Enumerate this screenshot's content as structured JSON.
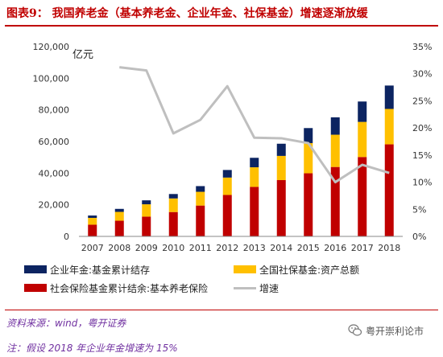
{
  "header": {
    "title": "图表9：  我国养老金（基本养老金、企业年金、社保基金）增速逐渐放缓"
  },
  "chart_data": {
    "type": "bar",
    "stacked": true,
    "unit_label": "亿元",
    "categories": [
      "2007",
      "2008",
      "2009",
      "2010",
      "2011",
      "2012",
      "2013",
      "2014",
      "2015",
      "2016",
      "2017",
      "2018"
    ],
    "y_left": {
      "ylim": [
        0,
        120000
      ],
      "ticks": [
        "0",
        "20,000",
        "40,000",
        "60,000",
        "80,000",
        "100,000",
        "120,000"
      ],
      "tick_values": [
        0,
        20000,
        40000,
        60000,
        80000,
        100000,
        120000
      ]
    },
    "y_right": {
      "ylim": [
        0,
        0.35
      ],
      "ticks": [
        "0%",
        "5%",
        "10%",
        "15%",
        "20%",
        "25%",
        "30%",
        "35%"
      ],
      "tick_values": [
        0,
        0.05,
        0.1,
        0.15,
        0.2,
        0.25,
        0.3,
        0.35
      ]
    },
    "series": [
      {
        "name": "社会保险基金累计结余:基本养老保险",
        "type": "bar",
        "color": "#c00000",
        "values": [
          7400,
          9900,
          12500,
          15400,
          19500,
          26200,
          31300,
          35600,
          39900,
          43900,
          50200,
          58200
        ]
      },
      {
        "name": "全国社保基金:资产总额",
        "type": "bar",
        "color": "#ffc000",
        "values": [
          4300,
          5600,
          7800,
          8600,
          8700,
          11000,
          12400,
          15300,
          19100,
          20400,
          22200,
          22400
        ]
      },
      {
        "name": "企业年金:基金累计结存",
        "type": "bar",
        "color": "#0c2461",
        "values": [
          1500,
          1900,
          2500,
          2800,
          3600,
          4800,
          6000,
          7700,
          9500,
          11000,
          12900,
          14800
        ]
      },
      {
        "name": "增速",
        "type": "line",
        "axis": "right",
        "color": "#bfbfbf",
        "values": [
          null,
          0.312,
          0.306,
          0.19,
          0.215,
          0.277,
          0.182,
          0.181,
          0.172,
          0.1,
          0.132,
          0.117
        ]
      }
    ]
  },
  "legend": [
    {
      "label": "企业年金:基金累计结存",
      "color": "#0c2461",
      "kind": "bar"
    },
    {
      "label": "全国社保基金:资产总额",
      "color": "#ffc000",
      "kind": "bar"
    },
    {
      "label": "社会保险基金累计结余:基本养老保险",
      "color": "#c00000",
      "kind": "bar"
    },
    {
      "label": "增速",
      "color": "#bfbfbf",
      "kind": "line"
    }
  ],
  "footer": {
    "source": "资料来源：wind，粤开证券",
    "note": "注：假设 2018 年企业年金增速为 15%",
    "watermark": "粤开崇利论市"
  }
}
